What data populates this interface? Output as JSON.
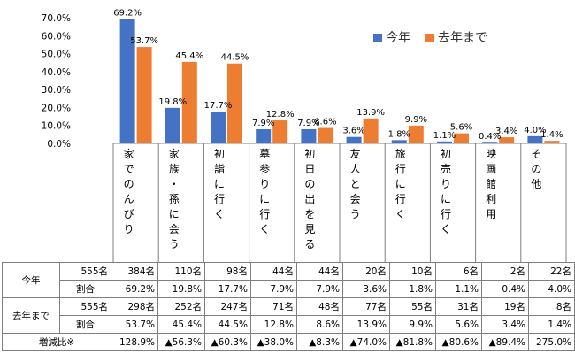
{
  "chart_data": {
    "type": "bar",
    "categories": [
      "家でのんびり",
      "家族・孫に会う",
      "初詣に行く",
      "墓参りに行く",
      "初日の出を見る",
      "友人と会う",
      "旅行に行く",
      "初売りに行く",
      "映画館利用",
      "その他"
    ],
    "series": [
      {
        "name": "今年",
        "color": "#4472c4",
        "values": [
          69.2,
          19.8,
          17.7,
          7.9,
          7.9,
          3.6,
          1.8,
          1.1,
          0.4,
          4.0
        ],
        "labels": [
          "69.2%",
          "19.8%",
          "17.7%",
          "7.9%",
          "7.9%",
          "3.6%",
          "1.8%",
          "1.1%",
          "0.4%",
          "4.0%"
        ]
      },
      {
        "name": "去年まで",
        "color": "#ed7d31",
        "values": [
          53.7,
          45.4,
          44.5,
          12.8,
          8.6,
          13.9,
          9.9,
          5.6,
          3.4,
          1.4
        ],
        "labels": [
          "53.7%",
          "45.4%",
          "44.5%",
          "12.8%",
          "8.6%",
          "13.9%",
          "9.9%",
          "5.6%",
          "3.4%",
          "1.4%"
        ]
      }
    ],
    "ylim": [
      0,
      70
    ],
    "yticks": [
      "0.0%",
      "10.0%",
      "20.0%",
      "30.0%",
      "40.0%",
      "50.0%",
      "60.0%",
      "70.0%"
    ],
    "grid": false,
    "legend": "top-right"
  },
  "table": {
    "row1_label": "今年",
    "row1_total": "555名",
    "row1_counts": [
      "384名",
      "110名",
      "98名",
      "44名",
      "44名",
      "20名",
      "10名",
      "6名",
      "2名",
      "22名"
    ],
    "row1_ratio_label": "割合",
    "row1_ratios": [
      "69.2%",
      "19.8%",
      "17.7%",
      "7.9%",
      "7.9%",
      "3.6%",
      "1.8%",
      "1.1%",
      "0.4%",
      "4.0%"
    ],
    "row2_label": "去年まで",
    "row2_total": "555名",
    "row2_counts": [
      "298名",
      "252名",
      "247名",
      "71名",
      "48名",
      "77名",
      "55名",
      "31名",
      "19名",
      "8名"
    ],
    "row2_ratio_label": "割合",
    "row2_ratios": [
      "53.7%",
      "45.4%",
      "44.5%",
      "12.8%",
      "8.6%",
      "13.9%",
      "9.9%",
      "5.6%",
      "3.4%",
      "1.4%"
    ],
    "change_label": "増減比※",
    "changes": [
      "128.9%",
      "▲56.3%",
      "▲60.3%",
      "▲38.0%",
      "▲8.3%",
      "▲74.0%",
      "▲81.8%",
      "▲80.6%",
      "▲89.4%",
      "275.0%"
    ]
  }
}
